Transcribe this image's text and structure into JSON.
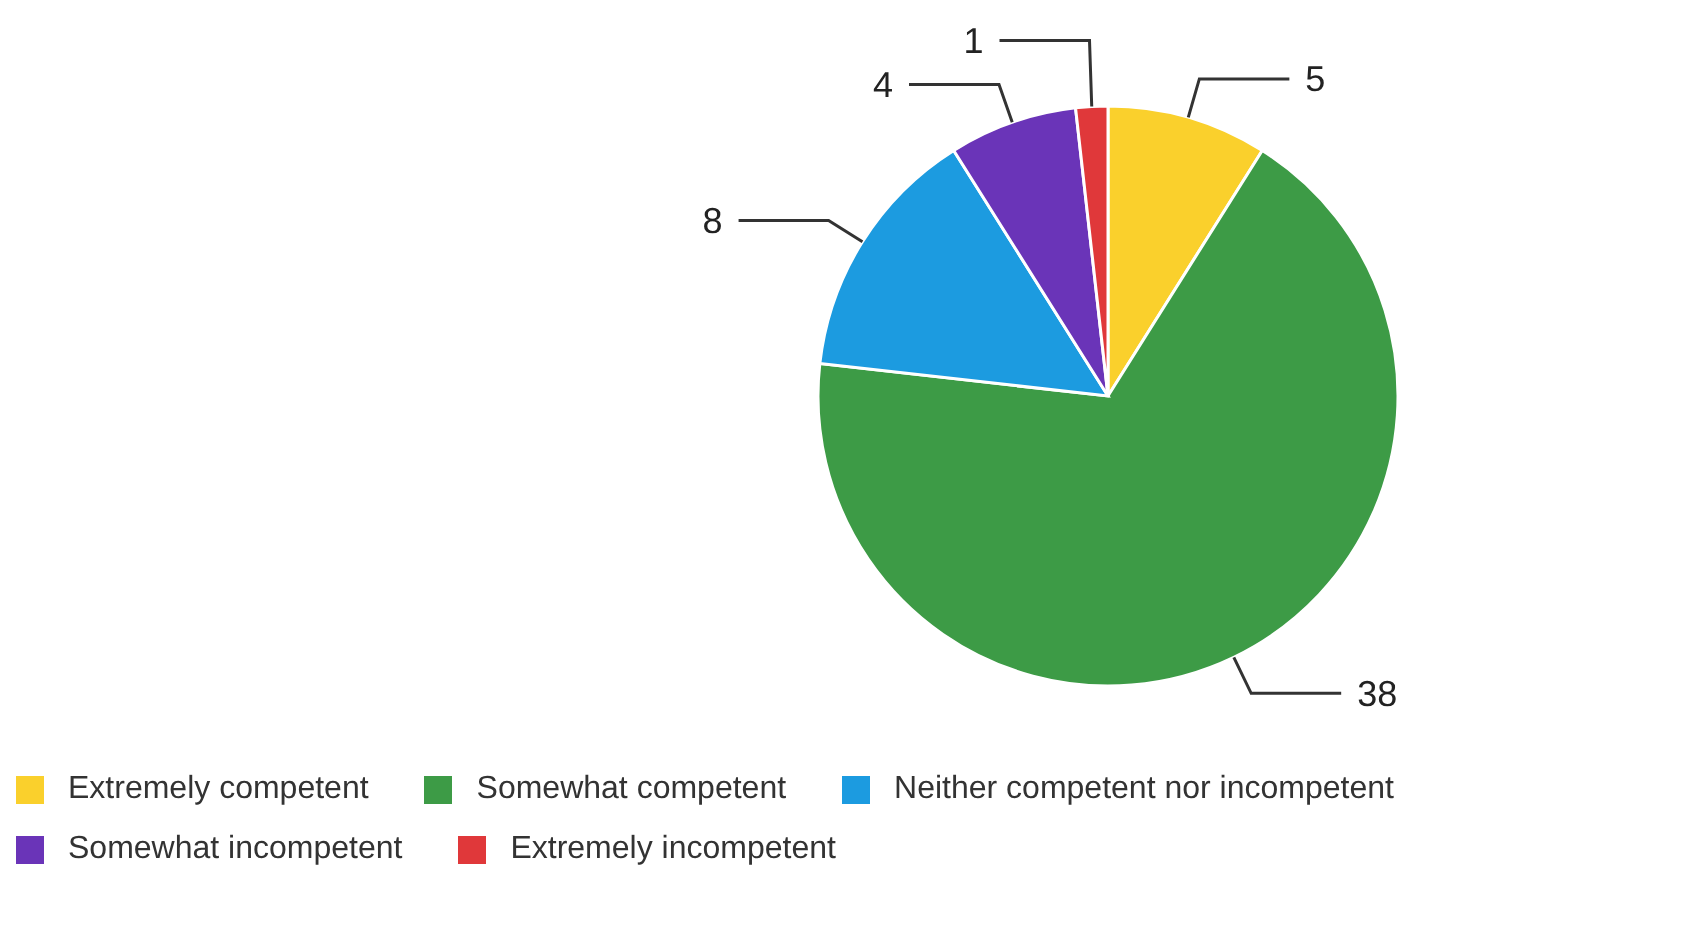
{
  "chart_data": {
    "type": "pie",
    "categories": [
      "Extremely competent",
      "Somewhat competent",
      "Neither competent nor incompetent",
      "Somewhat incompetent",
      "Extremely incompetent"
    ],
    "values": [
      5,
      38,
      8,
      4,
      1
    ],
    "colors": [
      "#fad02c",
      "#3d9b46",
      "#1c9be0",
      "#6a34b8",
      "#e0383a"
    ],
    "data_labels": true,
    "legend": "bottom left"
  }
}
